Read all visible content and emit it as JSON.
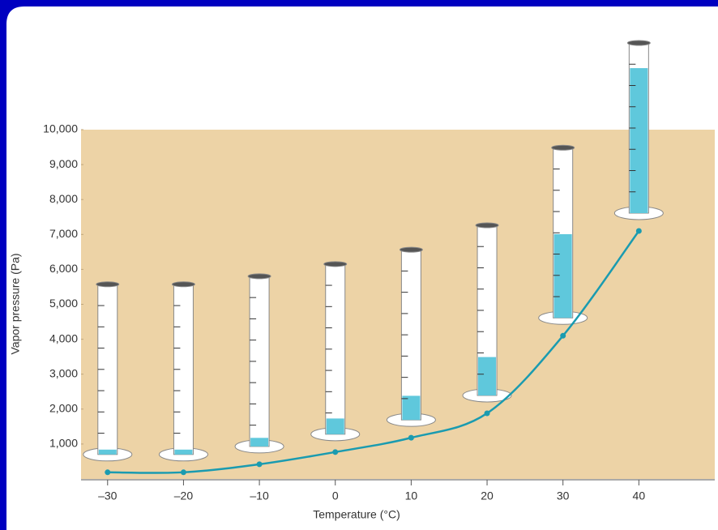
{
  "chart_data": {
    "type": "line",
    "xlabel": "Temperature (°C)",
    "ylabel": "Vapor pressure (Pa)",
    "x": [
      -30,
      -20,
      -10,
      0,
      10,
      20,
      30,
      40
    ],
    "series": [
      {
        "color": "#1a9bb0",
        "values": [
          190,
          190,
          420,
          770,
          1180,
          1880,
          4100,
          7100
        ]
      }
    ],
    "xlim": [
      -33.5,
      50
    ],
    "ylim": [
      0,
      10000
    ],
    "xticks": [
      {
        "value": -30,
        "label": "–30"
      },
      {
        "value": -20,
        "label": "–20"
      },
      {
        "value": -10,
        "label": "–10"
      },
      0,
      10,
      20,
      30,
      40
    ],
    "yticks": [
      {
        "value": 1000,
        "label": "1,000"
      },
      {
        "value": 2000,
        "label": "2,000"
      },
      {
        "value": 3000,
        "label": "3,000"
      },
      {
        "value": 4000,
        "label": "4,000"
      },
      {
        "value": 5000,
        "label": "5,000"
      },
      {
        "value": 6000,
        "label": "6,000"
      },
      {
        "value": 7000,
        "label": "7,000"
      },
      {
        "value": 8000,
        "label": "8,000"
      },
      {
        "value": 9000,
        "label": "9,000"
      },
      {
        "value": 10000,
        "label": "10,000"
      }
    ],
    "background": "#edd3a6"
  }
}
